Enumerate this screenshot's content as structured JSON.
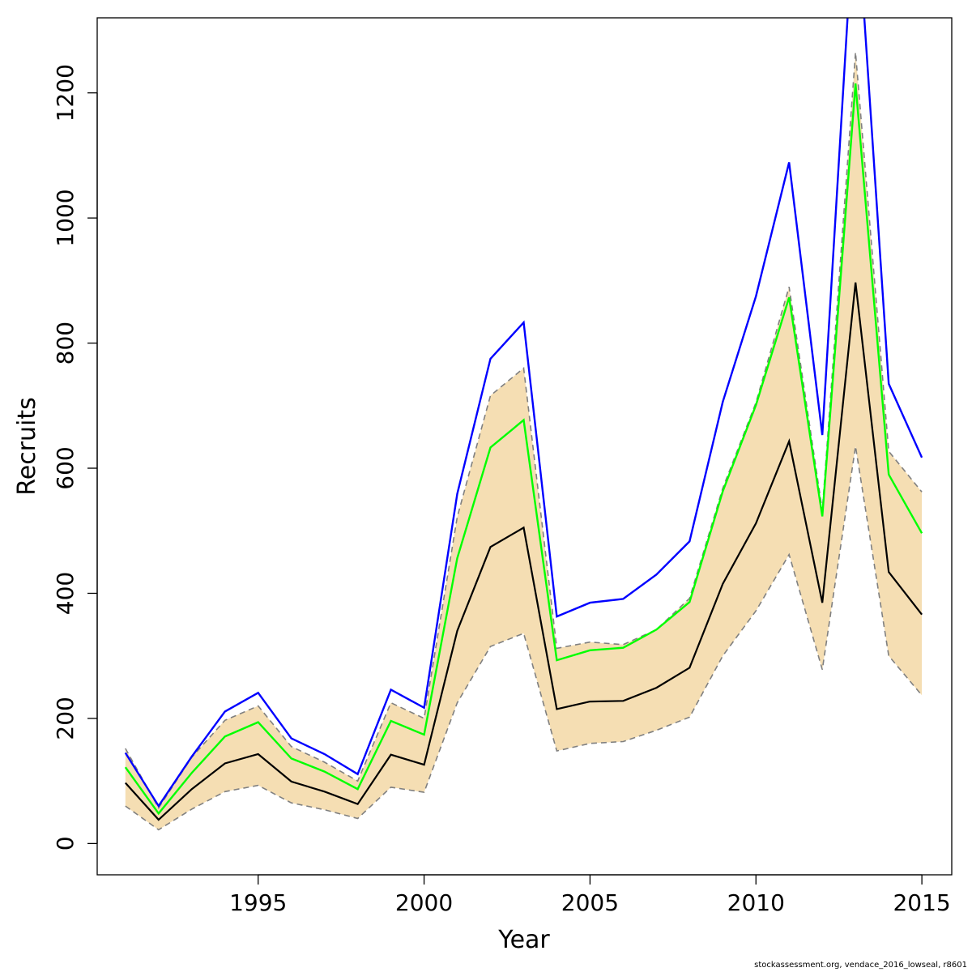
{
  "chart_data": {
    "type": "line",
    "xlabel": "Year",
    "ylabel": "Recruits",
    "xlim": [
      1990.15,
      2015.9
    ],
    "ylim": [
      -50,
      1320
    ],
    "x_ticks": [
      1995,
      2000,
      2005,
      2010,
      2015
    ],
    "y_ticks": [
      0,
      200,
      400,
      600,
      800,
      1000,
      1200
    ],
    "grid": false,
    "legend": "none",
    "colors": {
      "band": "#f5deb3",
      "band_edge": "#808080",
      "median": "#000000",
      "green": "#00ff00",
      "blue": "#0000ff"
    },
    "x": [
      1991,
      1992,
      1993,
      1994,
      1995,
      1996,
      1997,
      1998,
      1999,
      2000,
      2001,
      2002,
      2003,
      2004,
      2005,
      2006,
      2007,
      2008,
      2009,
      2010,
      2011,
      2012,
      2013,
      2014,
      2015
    ],
    "band_lower": [
      60,
      22,
      55,
      83,
      93,
      65,
      54,
      40,
      90,
      82,
      225,
      315,
      336,
      148,
      160,
      163,
      181,
      202,
      300,
      372,
      462,
      278,
      635,
      300,
      237
    ],
    "band_upper": [
      152,
      57,
      138,
      197,
      220,
      155,
      130,
      100,
      225,
      200,
      522,
      716,
      760,
      312,
      322,
      318,
      342,
      392,
      568,
      705,
      890,
      532,
      1265,
      627,
      562
    ],
    "series": [
      {
        "values": [
          97,
          38,
          87,
          128,
          143,
          99,
          83,
          63,
          142,
          126,
          340,
          474,
          505,
          215,
          227,
          228,
          249,
          281,
          415,
          512,
          643,
          385,
          897,
          434,
          366
        ]
      },
      {
        "values": [
          122,
          48,
          113,
          171,
          194,
          136,
          115,
          87,
          196,
          174,
          456,
          633,
          677,
          293,
          309,
          313,
          342,
          386,
          563,
          701,
          873,
          523,
          1215,
          590,
          496
        ]
      },
      {
        "values": [
          145,
          60,
          139,
          211,
          241,
          168,
          143,
          111,
          246,
          217,
          559,
          775,
          833,
          363,
          385,
          391,
          430,
          483,
          706,
          875,
          1089,
          653,
          1530,
          735,
          617
        ]
      }
    ]
  },
  "footer": "stockassessment.org, vendace_2016_lowseal, r8601"
}
